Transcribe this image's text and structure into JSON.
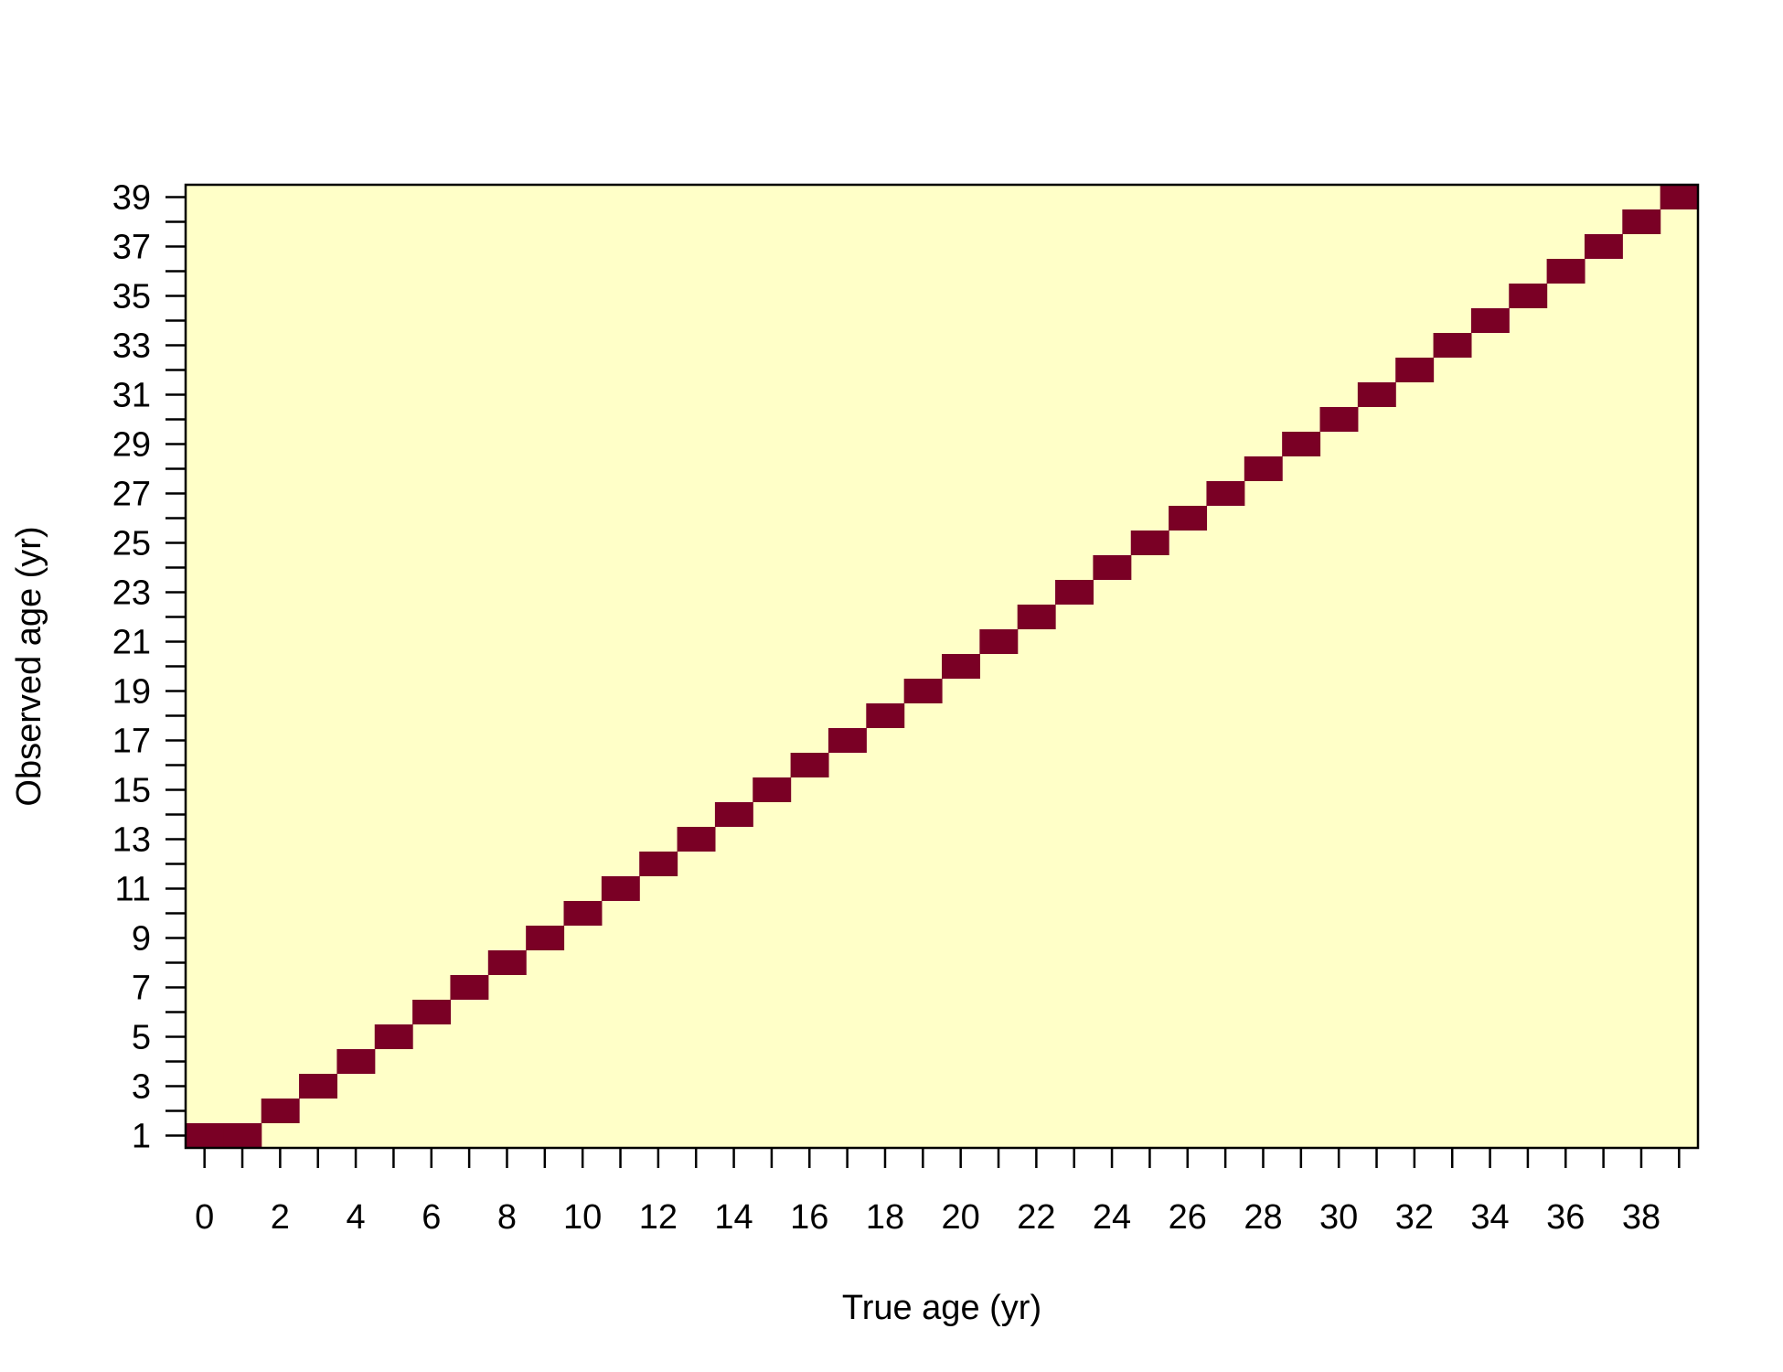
{
  "chart_data": {
    "type": "heatmap",
    "title": "",
    "xlabel": "True age (yr)",
    "ylabel": "Observed age (yr)",
    "xlim": [
      -0.5,
      39.5
    ],
    "ylim": [
      0.5,
      39.5
    ],
    "x_tick_labels": [
      "0",
      "2",
      "4",
      "6",
      "8",
      "10",
      "12",
      "14",
      "16",
      "18",
      "20",
      "22",
      "24",
      "26",
      "28",
      "30",
      "32",
      "34",
      "36",
      "38"
    ],
    "y_tick_labels": [
      "1",
      "3",
      "5",
      "7",
      "9",
      "11",
      "13",
      "15",
      "17",
      "19",
      "21",
      "23",
      "25",
      "27",
      "29",
      "31",
      "33",
      "35",
      "37",
      "39"
    ],
    "x_minor_ticks_every": 1,
    "y_minor_ticks_every": 1,
    "background_color": "#FFFFC8",
    "cell_color": "#7A0025",
    "cells": [
      [
        0,
        1
      ],
      [
        1,
        1
      ],
      [
        2,
        2
      ],
      [
        3,
        3
      ],
      [
        4,
        4
      ],
      [
        5,
        5
      ],
      [
        6,
        6
      ],
      [
        7,
        7
      ],
      [
        8,
        8
      ],
      [
        9,
        9
      ],
      [
        10,
        10
      ],
      [
        11,
        11
      ],
      [
        12,
        12
      ],
      [
        13,
        13
      ],
      [
        14,
        14
      ],
      [
        15,
        15
      ],
      [
        16,
        16
      ],
      [
        17,
        17
      ],
      [
        18,
        18
      ],
      [
        19,
        19
      ],
      [
        20,
        20
      ],
      [
        21,
        21
      ],
      [
        22,
        22
      ],
      [
        23,
        23
      ],
      [
        24,
        24
      ],
      [
        25,
        25
      ],
      [
        26,
        26
      ],
      [
        27,
        27
      ],
      [
        28,
        28
      ],
      [
        29,
        29
      ],
      [
        30,
        30
      ],
      [
        31,
        31
      ],
      [
        32,
        32
      ],
      [
        33,
        33
      ],
      [
        34,
        34
      ],
      [
        35,
        35
      ],
      [
        36,
        36
      ],
      [
        37,
        37
      ],
      [
        38,
        38
      ],
      [
        39,
        39
      ]
    ],
    "grid": false,
    "legend": "none"
  }
}
